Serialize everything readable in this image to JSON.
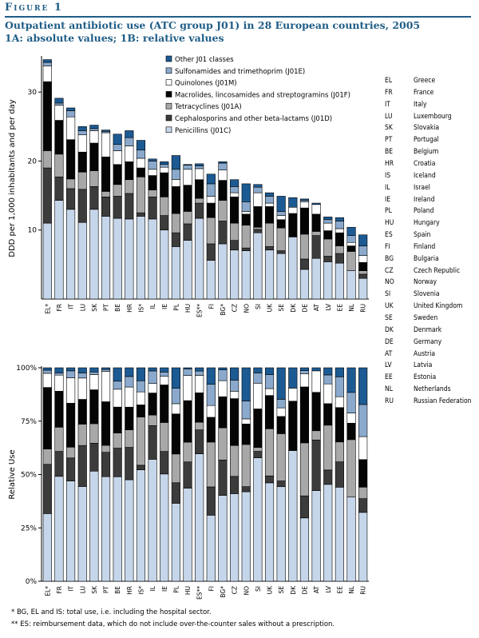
{
  "figure_label": "Figure 1",
  "title_line1": "Outpatient antibiotic use (ATC group J01) in 28 European countries, 2005",
  "title_line2": "1A: absolute values; 1B: relative values",
  "colors": {
    "penicillins": "#c6d6ea",
    "cephalosporins": "#3c3c3c",
    "tetracyclines": "#a8a8a8",
    "macrolides": "#050505",
    "quinolones": "#ffffff",
    "sulfonamides": "#8aa9cc",
    "other": "#1c5a93",
    "title_blue": "#1f5d86"
  },
  "country_key": [
    {
      "code": "EL",
      "name": "Greece"
    },
    {
      "code": "FR",
      "name": "France"
    },
    {
      "code": "IT",
      "name": "Italy"
    },
    {
      "code": "LU",
      "name": "Luxembourg"
    },
    {
      "code": "SK",
      "name": "Slovakia"
    },
    {
      "code": "PT",
      "name": "Portugal"
    },
    {
      "code": "BE",
      "name": "Belgium"
    },
    {
      "code": "HR",
      "name": "Croatia"
    },
    {
      "code": "IS",
      "name": "Iceland"
    },
    {
      "code": "IL",
      "name": "Israel"
    },
    {
      "code": "IE",
      "name": "Ireland"
    },
    {
      "code": "PL",
      "name": "Poland"
    },
    {
      "code": "HU",
      "name": "Hungary"
    },
    {
      "code": "ES",
      "name": "Spain"
    },
    {
      "code": "FI",
      "name": "Finland"
    },
    {
      "code": "BG",
      "name": "Bulgaria"
    },
    {
      "code": "CZ",
      "name": "Czech Republic"
    },
    {
      "code": "NO",
      "name": "Norway"
    },
    {
      "code": "SI",
      "name": "Slovenia"
    },
    {
      "code": "UK",
      "name": "United Kingdom"
    },
    {
      "code": "SE",
      "name": "Sweden"
    },
    {
      "code": "DK",
      "name": "Denmark"
    },
    {
      "code": "DE",
      "name": "Germany"
    },
    {
      "code": "AT",
      "name": "Austria"
    },
    {
      "code": "LV",
      "name": "Latvia"
    },
    {
      "code": "EE",
      "name": "Estonia"
    },
    {
      "code": "NL",
      "name": "Netherlands"
    },
    {
      "code": "RU",
      "name": "Russian Federation"
    }
  ],
  "footnote_1": "* BG, EL and IS: total use, i.e. including the hospital sector.",
  "footnote_2": "** ES: reimbursement data, which do not include over-the-counter sales without a prescription.",
  "chart_data": [
    {
      "type": "bar",
      "stacked": true,
      "ylabel": "DDD per 1,000 inhabitants and per day",
      "ylim": [
        0,
        35
      ],
      "yticks": [
        10,
        20,
        30
      ],
      "categories": [
        "EL*",
        "FR",
        "IT",
        "LU",
        "SK",
        "PT",
        "BE",
        "HR",
        "IS*",
        "IL",
        "IE",
        "PL",
        "HU",
        "ES**",
        "FI",
        "BG*",
        "CZ",
        "NO",
        "SI",
        "UK",
        "SE",
        "DK",
        "DE",
        "AT",
        "LV",
        "EE",
        "NL",
        "RU"
      ],
      "legend_order": [
        "Other J01 classes",
        "Sulfonamides and trimethoprim (J01E)",
        "Quinolones (J01M)",
        "Macrolides, lincosamides and streptogramins (J01F)",
        "Tetracyclines (J01A)",
        "Cephalosporins and other beta-lactams (J01D)",
        "Penicillins (J01C)"
      ],
      "legend_position": "top-right",
      "series": [
        {
          "name": "Penicillins (J01C)",
          "color_key": "penicillins",
          "values": [
            11.0,
            14.3,
            13.0,
            11.1,
            13.0,
            12.0,
            11.7,
            11.6,
            12.0,
            11.6,
            10.0,
            7.6,
            8.5,
            11.7,
            5.6,
            8.0,
            7.1,
            7.0,
            9.6,
            7.1,
            6.6,
            9.0,
            4.3,
            5.9,
            5.4,
            5.2,
            4.1,
            3.0
          ]
        },
        {
          "name": "Cephalosporins and other beta-lactams (J01D)",
          "color_key": "cephalosporins",
          "values": [
            8.0,
            3.4,
            3.0,
            4.8,
            3.3,
            2.8,
            3.2,
            3.7,
            0.5,
            3.2,
            2.1,
            2.0,
            2.4,
            2.2,
            2.4,
            3.3,
            1.4,
            0.4,
            0.5,
            0.5,
            0.4,
            0.0,
            1.5,
            3.3,
            0.8,
            1.4,
            0.0,
            0.6
          ]
        },
        {
          "name": "Tetracyclines (J01A)",
          "color_key": "tetracyclines",
          "values": [
            2.5,
            3.3,
            1.4,
            2.5,
            2.3,
            0.8,
            1.7,
            2.0,
            5.2,
            1.0,
            2.7,
            2.8,
            1.8,
            0.7,
            3.8,
            3.0,
            2.5,
            3.3,
            0.3,
            3.4,
            3.3,
            0.0,
            3.6,
            0.6,
            2.5,
            1.1,
            2.8,
            0.5
          ]
        },
        {
          "name": "Macrolides, lincosamides and streptogramins (J01F)",
          "color_key": "macrolides",
          "values": [
            10.0,
            4.9,
            5.7,
            2.9,
            4.0,
            5.0,
            2.9,
            2.6,
            1.3,
            2.1,
            3.5,
            3.9,
            3.8,
            2.7,
            2.1,
            2.9,
            3.8,
            1.6,
            3.0,
            2.4,
            1.2,
            3.4,
            3.8,
            2.5,
            1.2,
            1.9,
            0.8,
            1.2
          ]
        },
        {
          "name": "Quinolones (J01M)",
          "color_key": "quinolones",
          "values": [
            2.3,
            2.2,
            3.3,
            2.5,
            1.8,
            3.5,
            2.0,
            2.3,
            1.4,
            0.9,
            0.8,
            1.0,
            2.3,
            1.6,
            1.0,
            1.5,
            0.6,
            0.4,
            2.0,
            0.5,
            0.6,
            0.9,
            0.9,
            1.4,
            1.1,
            0.6,
            0.5,
            1.0
          ]
        },
        {
          "name": "Sulfonamides and trimethoprim (J01E)",
          "color_key": "sulfonamides",
          "values": [
            0.5,
            0.3,
            0.9,
            0.6,
            0.3,
            0.2,
            0.9,
            1.2,
            1.2,
            1.2,
            0.4,
            1.5,
            0.6,
            0.4,
            1.8,
            1.0,
            0.9,
            1.4,
            0.8,
            1.0,
            0.6,
            0.0,
            0.2,
            0.0,
            0.5,
            1.1,
            1.0,
            1.4
          ]
        },
        {
          "name": "Other J01 classes",
          "color_key": "other",
          "values": [
            0.4,
            0.7,
            0.4,
            0.6,
            0.5,
            0.2,
            1.5,
            1.0,
            1.4,
            0.3,
            0.4,
            2.0,
            0.1,
            0.3,
            1.4,
            0.2,
            1.0,
            2.6,
            0.4,
            0.5,
            2.2,
            1.4,
            0.2,
            0.2,
            0.4,
            0.5,
            1.2,
            1.6
          ]
        }
      ]
    },
    {
      "type": "bar",
      "stacked": true,
      "percent": true,
      "ylabel": "Relative Use",
      "ylim": [
        0,
        100
      ],
      "yticks": [
        "0%",
        "25%",
        "50%",
        "75%",
        "100%"
      ],
      "categories": [
        "EL*",
        "FR",
        "IT",
        "LU",
        "SK",
        "PT",
        "BE",
        "HR",
        "IS*",
        "IL",
        "IE",
        "PL",
        "HU",
        "ES**",
        "FI",
        "BG*",
        "CZ",
        "NO",
        "SI",
        "UK",
        "SE",
        "DK",
        "DE",
        "AT",
        "LV",
        "EE",
        "NL",
        "RU"
      ],
      "series_from": "chart_data.0.series"
    }
  ]
}
